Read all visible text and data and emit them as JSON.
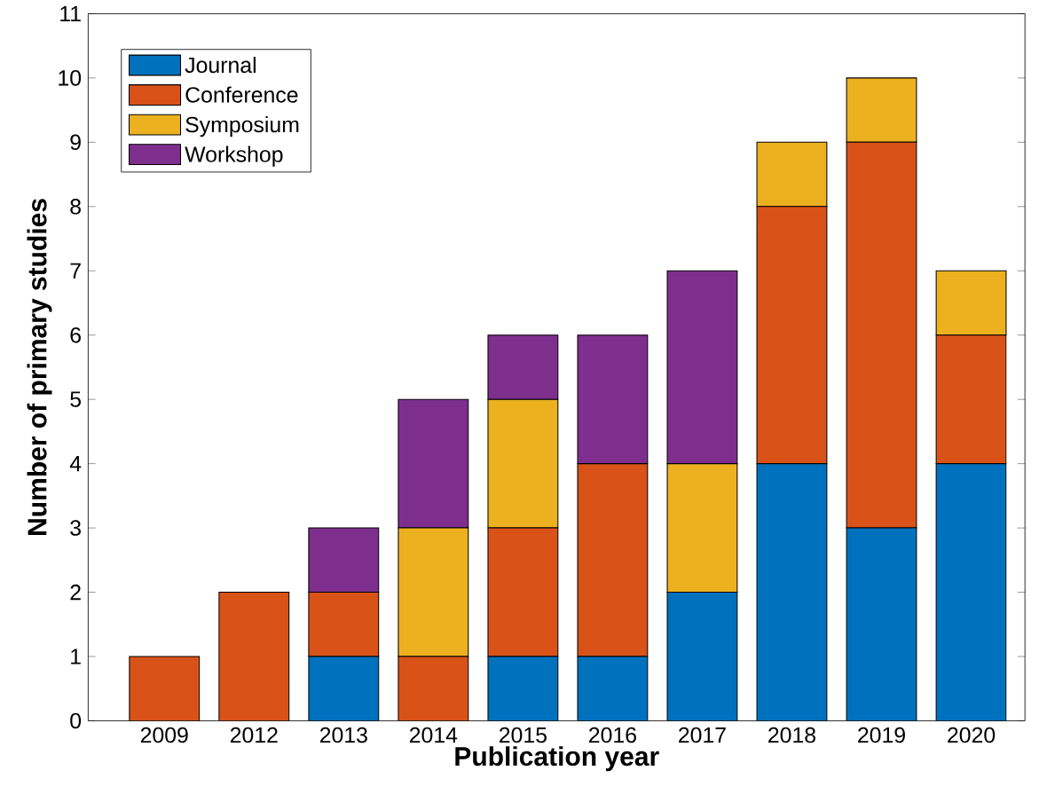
{
  "chart_data": {
    "type": "bar",
    "stacked": true,
    "xlabel": "Publication year",
    "ylabel": "Number of primary studies",
    "categories": [
      "2009",
      "2012",
      "2013",
      "2014",
      "2015",
      "2016",
      "2017",
      "2018",
      "2019",
      "2020"
    ],
    "series": [
      {
        "name": "Journal",
        "color": "#0072bd",
        "values": [
          0,
          0,
          1,
          0,
          1,
          1,
          2,
          4,
          3,
          4
        ]
      },
      {
        "name": "Conference",
        "color": "#d95319",
        "values": [
          1,
          2,
          1,
          1,
          2,
          3,
          0,
          4,
          6,
          2
        ]
      },
      {
        "name": "Symposium",
        "color": "#edb120",
        "values": [
          0,
          0,
          0,
          2,
          2,
          0,
          2,
          1,
          1,
          1
        ]
      },
      {
        "name": "Workshop",
        "color": "#7e2f8e",
        "values": [
          0,
          0,
          1,
          2,
          1,
          2,
          3,
          0,
          0,
          0
        ]
      }
    ],
    "ylim": [
      0,
      11
    ],
    "yticks": [
      0,
      1,
      2,
      3,
      4,
      5,
      6,
      7,
      8,
      9,
      10,
      11
    ],
    "grid": false,
    "legend": "top left"
  }
}
